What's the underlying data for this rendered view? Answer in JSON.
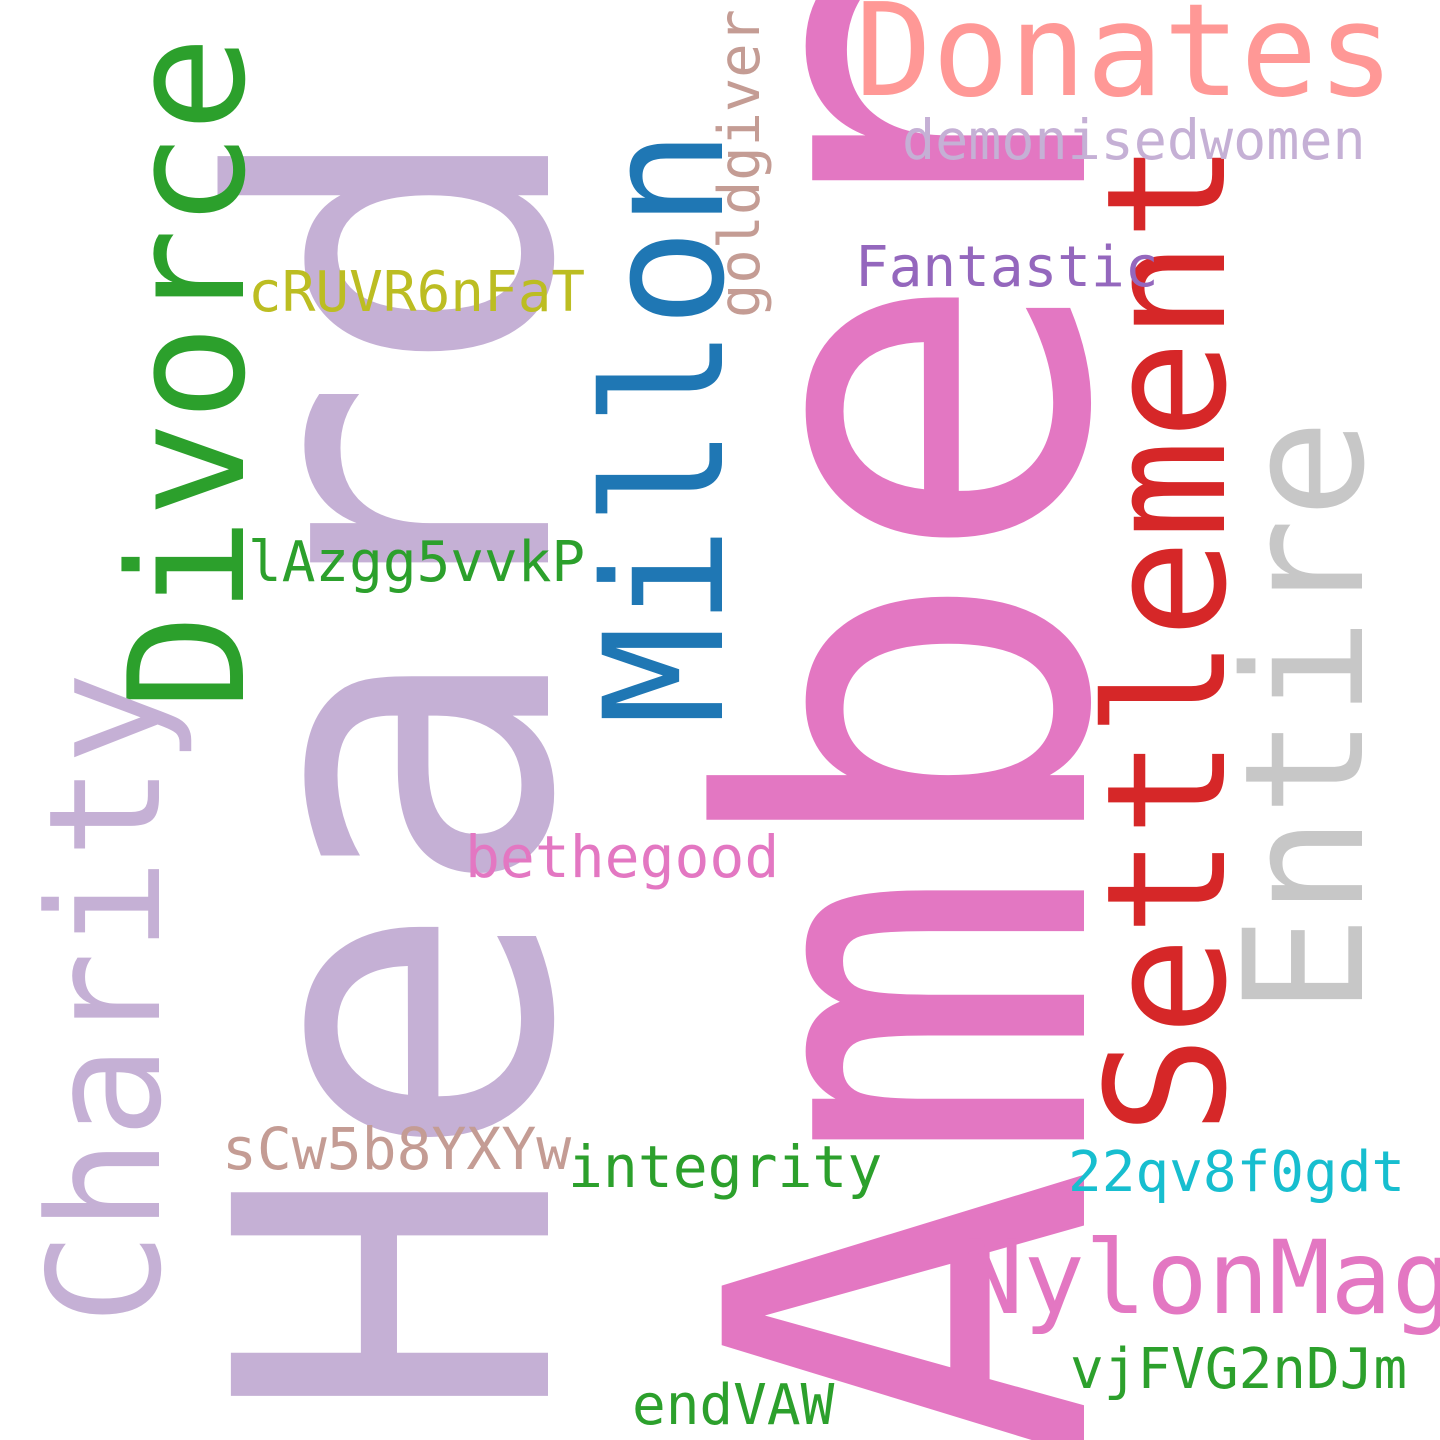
{
  "words": [
    {
      "id": "heard",
      "text": "Heard",
      "color": "#c5b0d5"
    },
    {
      "id": "amber",
      "text": "Amber",
      "color": "#e377c2"
    },
    {
      "id": "donates",
      "text": "Donates",
      "color": "#ff9896"
    },
    {
      "id": "divorce",
      "text": "Divorce",
      "color": "#2ca02c"
    },
    {
      "id": "millon",
      "text": "Millon",
      "color": "#1f77b4"
    },
    {
      "id": "settlement",
      "text": "Settlement",
      "color": "#d62728"
    },
    {
      "id": "entire",
      "text": "Entire",
      "color": "#c7c7c7"
    },
    {
      "id": "charity",
      "text": "Charity",
      "color": "#c5b0d5"
    },
    {
      "id": "nylonmag",
      "text": "NylonMag",
      "color": "#e377c2"
    },
    {
      "id": "demonisedwomen",
      "text": "demonisedwomen",
      "color": "#c5b0d5"
    },
    {
      "id": "fantastic",
      "text": "Fantastic",
      "color": "#9467bd"
    },
    {
      "id": "goldgiver",
      "text": "goldgiver",
      "color": "#c49c94"
    },
    {
      "id": "cruvr6nfat",
      "text": "cRUVR6nFaT",
      "color": "#bcbd22"
    },
    {
      "id": "lazgg5vvkp",
      "text": "lAzgg5vvkP",
      "color": "#2ca02c"
    },
    {
      "id": "bethegood",
      "text": "bethegood",
      "color": "#e377c2"
    },
    {
      "id": "scw5b8yxyw",
      "text": "sCw5b8YXYw",
      "color": "#c49c94"
    },
    {
      "id": "integrity",
      "text": "integrity",
      "color": "#2ca02c"
    },
    {
      "id": "22qv8f0gdt",
      "text": "22qv8f0gdt",
      "color": "#17becf"
    },
    {
      "id": "vjfvg2ndjm",
      "text": "vjFVG2nDJm",
      "color": "#2ca02c"
    },
    {
      "id": "endvaw",
      "text": "endVAW",
      "color": "#2ca02c"
    }
  ]
}
